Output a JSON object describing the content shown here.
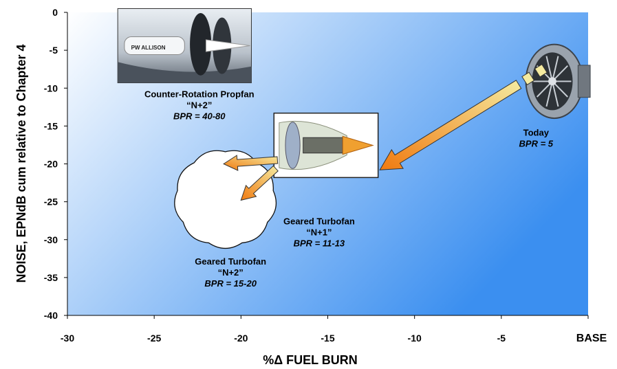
{
  "chart_data": {
    "type": "scatter",
    "title": "",
    "xlabel": "%Δ  FUEL  BURN",
    "ylabel": "NOISE,   EPNdB cum relative to Chapter 4",
    "xlim": [
      -30,
      0
    ],
    "ylim": [
      -40,
      0
    ],
    "x_ticks": [
      {
        "value": -30,
        "label": "-30"
      },
      {
        "value": -25,
        "label": "-25"
      },
      {
        "value": -20,
        "label": "-20"
      },
      {
        "value": -15,
        "label": "-15"
      },
      {
        "value": -10,
        "label": "-10"
      },
      {
        "value": -5,
        "label": "-5"
      },
      {
        "value": 0,
        "label": "BASE"
      }
    ],
    "y_ticks": [
      {
        "value": 0,
        "label": "0"
      },
      {
        "value": -5,
        "label": "-5"
      },
      {
        "value": -10,
        "label": "-10"
      },
      {
        "value": -15,
        "label": "-15"
      },
      {
        "value": -20,
        "label": "-20"
      },
      {
        "value": -25,
        "label": "-25"
      },
      {
        "value": -30,
        "label": "-30"
      },
      {
        "value": -35,
        "label": "-35"
      },
      {
        "value": -40,
        "label": "-40"
      }
    ],
    "grid": false,
    "background": {
      "from": "#ffffff",
      "to": "#3b8ff0"
    },
    "arrow_color": "#f07a10",
    "arrow_light": "#f5eba0",
    "annotations": [
      {
        "id": "today",
        "lines": [
          "Today",
          "BPR = 5"
        ],
        "x": -3,
        "y": -16.3,
        "italic_lines": [
          1
        ]
      },
      {
        "id": "gtf-n1",
        "lines": [
          "Geared Turbofan",
          "“N+1”",
          "BPR = 11-13"
        ],
        "x": -15.5,
        "y": -28,
        "italic_lines": [
          2
        ]
      },
      {
        "id": "gtf-n2",
        "lines": [
          "Geared Turbofan",
          "“N+2”",
          "BPR = 15-20"
        ],
        "x": -20.6,
        "y": -33.3,
        "italic_lines": [
          2
        ]
      },
      {
        "id": "crp-n2",
        "lines": [
          "Counter-Rotation Propfan",
          "“N+2”",
          "BPR = 40-80"
        ],
        "x": -22.4,
        "y": -11.2,
        "italic_lines": [
          2
        ]
      }
    ],
    "arrows": [
      {
        "id": "today-to-n1",
        "from": [
          -4,
          -9.5
        ],
        "to": [
          -12,
          -20.8
        ],
        "dashed_tail": true
      },
      {
        "id": "n1-to-n2-left",
        "from": [
          -17.9,
          -19.5
        ],
        "to": [
          -21,
          -20
        ]
      },
      {
        "id": "n1-to-n2-down",
        "from": [
          -18,
          -20.6
        ],
        "to": [
          -20,
          -24.8
        ]
      }
    ],
    "pictures": [
      {
        "id": "propfan-photo",
        "x0": -27.1,
        "x1": -19.4,
        "y0": -9.3,
        "y1": 0.5,
        "logo_text": "PW ALLISON"
      },
      {
        "id": "gtf-cutaway",
        "x0": -18.1,
        "x1": -12.1,
        "y0": -21.8,
        "y1": -13.3
      },
      {
        "id": "today-engine",
        "x0": -3.7,
        "x1": 0.2,
        "y0": -14.4,
        "y1": -3.8
      }
    ],
    "cloud": {
      "cx": -20.9,
      "cy": -24.6,
      "rx": 2.8,
      "ry": 6.2
    }
  }
}
